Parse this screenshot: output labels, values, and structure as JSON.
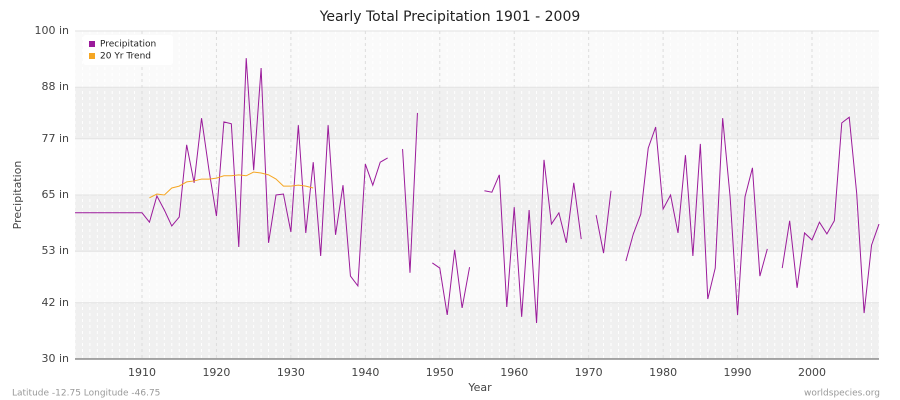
{
  "chart_data": {
    "type": "line",
    "title": "Yearly Total Precipitation 1901 - 2009",
    "x_label": "Year",
    "y_label": "Precipitation",
    "location": "Latitude -12.75 Longitude -46.75",
    "source": "worldspecies.org",
    "legend": "upper left",
    "grid": true,
    "xlim": [
      1901,
      2009
    ],
    "xticks": [
      1910,
      1920,
      1930,
      1940,
      1950,
      1960,
      1970,
      1980,
      1990,
      2000
    ],
    "ylim": [
      30,
      100
    ],
    "yticks": [
      {
        "value": 30,
        "label": "30 in"
      },
      {
        "value": 42,
        "label": "42 in"
      },
      {
        "value": 53,
        "label": "53 in"
      },
      {
        "value": 65,
        "label": "65 in"
      },
      {
        "value": 77,
        "label": "77 in"
      },
      {
        "value": 88,
        "label": "88 in"
      },
      {
        "value": 100,
        "label": "100 in"
      }
    ],
    "x": [
      1901,
      1902,
      1903,
      1904,
      1905,
      1906,
      1907,
      1908,
      1909,
      1910,
      1911,
      1912,
      1913,
      1914,
      1915,
      1916,
      1917,
      1918,
      1919,
      1920,
      1921,
      1922,
      1923,
      1924,
      1925,
      1926,
      1927,
      1928,
      1929,
      1930,
      1931,
      1932,
      1933,
      1934,
      1935,
      1936,
      1937,
      1938,
      1939,
      1940,
      1941,
      1942,
      1943,
      1944,
      1945,
      1946,
      1947,
      1948,
      1949,
      1950,
      1951,
      1952,
      1953,
      1954,
      1955,
      1956,
      1957,
      1958,
      1959,
      1960,
      1961,
      1962,
      1963,
      1964,
      1965,
      1966,
      1967,
      1968,
      1969,
      1970,
      1971,
      1972,
      1973,
      1974,
      1975,
      1976,
      1977,
      1978,
      1979,
      1980,
      1981,
      1982,
      1983,
      1984,
      1985,
      1986,
      1987,
      1988,
      1989,
      1990,
      1991,
      1992,
      1993,
      1994,
      1995,
      1996,
      1997,
      1998,
      1999,
      2000,
      2001,
      2002,
      2003,
      2004,
      2005,
      2006,
      2007,
      2008,
      2009
    ],
    "series": [
      {
        "name": "Precipitation",
        "color": "#9b1b9b",
        "values": [
          61.2,
          61.2,
          61.2,
          61.2,
          61.2,
          61.2,
          61.2,
          61.2,
          61.2,
          61.2,
          59.2,
          64.8,
          61.8,
          58.4,
          60.3,
          75.7,
          67.6,
          81.4,
          70.3,
          60.5,
          80.6,
          80.2,
          53.9,
          94.2,
          70.3,
          92.1,
          54.8,
          65.0,
          65.2,
          57.1,
          79.9,
          56.9,
          72.0,
          52.0,
          79.9,
          56.5,
          67.1,
          47.7,
          45.6,
          71.6,
          67.1,
          72.0,
          72.9,
          null,
          74.8,
          48.4,
          82.5,
          null,
          50.5,
          49.4,
          39.4,
          53.3,
          40.9,
          49.6,
          null,
          65.9,
          65.6,
          69.3,
          41.1,
          62.4,
          39.0,
          61.8,
          37.7,
          72.5,
          58.8,
          61.2,
          54.8,
          67.6,
          55.6,
          null,
          60.7,
          52.6,
          65.9,
          null,
          50.9,
          56.7,
          60.9,
          75.0,
          79.5,
          62.0,
          65.0,
          56.9,
          73.5,
          52.0,
          75.9,
          42.8,
          49.4,
          81.4,
          64.6,
          39.4,
          64.6,
          70.8,
          47.7,
          53.5,
          null,
          49.4,
          59.5,
          45.2,
          56.9,
          55.4,
          59.2,
          56.7,
          59.5,
          80.4,
          81.6,
          65.4,
          39.8,
          54.3,
          58.8
        ]
      },
      {
        "name": "20 Yr Trend",
        "color": "#f5a623",
        "values": [
          null,
          null,
          null,
          null,
          null,
          null,
          null,
          null,
          null,
          null,
          64.4,
          65.2,
          65.0,
          66.5,
          66.9,
          67.8,
          68.0,
          68.4,
          68.4,
          68.6,
          69.1,
          69.1,
          69.3,
          69.1,
          69.9,
          69.7,
          69.3,
          68.4,
          66.9,
          66.9,
          67.1,
          66.9,
          66.5,
          null,
          null,
          null,
          null,
          null,
          null,
          null,
          null,
          null,
          null,
          null,
          null,
          null,
          null,
          null,
          null,
          null,
          null,
          null,
          null,
          null,
          null,
          null,
          null,
          null,
          null,
          null,
          null,
          null,
          null,
          null,
          null,
          null,
          null,
          null,
          null,
          null,
          null,
          null,
          null,
          null,
          null,
          null,
          null,
          null,
          null,
          null,
          null,
          null,
          null,
          null,
          null,
          null,
          null,
          null,
          null,
          null,
          null,
          null,
          null,
          null,
          null,
          null,
          null,
          null,
          null,
          null,
          null,
          null,
          null,
          null,
          null,
          null,
          null,
          null,
          null
        ]
      }
    ]
  }
}
